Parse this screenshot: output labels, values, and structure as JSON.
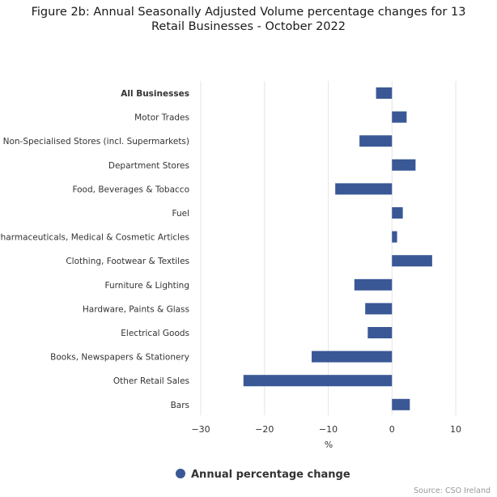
{
  "chart_data": {
    "type": "bar",
    "orientation": "horizontal",
    "title": "Figure 2b: Annual Seasonally Adjusted Volume percentage changes for 13 Retail Businesses - October 2022",
    "title_lines": [
      "Figure 2b: Annual Seasonally Adjusted Volume percentage changes for 13",
      "Retail Businesses - October 2022"
    ],
    "categories": [
      "All Businesses",
      "Motor Trades",
      "Non-Specialised Stores (incl. Supermarkets)",
      "Department Stores",
      "Food, Beverages & Tobacco",
      "Fuel",
      "Pharmaceuticals, Medical & Cosmetic Articles",
      "Clothing, Footwear & Textiles",
      "Furniture & Lighting",
      "Hardware, Paints & Glass",
      "Electrical Goods",
      "Books, Newspapers & Stationery",
      "Other Retail Sales",
      "Bars"
    ],
    "series": [
      {
        "name": "Annual percentage change",
        "color": "#3a5896",
        "values": [
          -2.5,
          2.3,
          -5.1,
          3.7,
          -8.9,
          1.7,
          0.8,
          6.3,
          -5.9,
          -4.2,
          -3.8,
          -12.6,
          -23.3,
          2.8
        ]
      }
    ],
    "xlabel": "%",
    "xlim": [
      -30,
      10
    ],
    "xticks": [
      -30,
      -20,
      -10,
      0,
      10
    ],
    "xtick_labels": [
      "−30",
      "−20",
      "−10",
      "0",
      "10"
    ],
    "grid": "vertical",
    "legend_position": "bottom-center",
    "credit": "Source: CSO Ireland"
  }
}
